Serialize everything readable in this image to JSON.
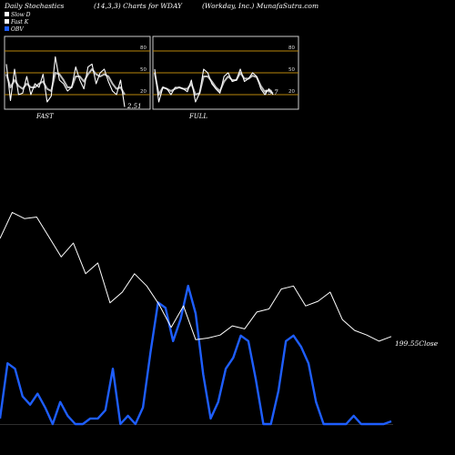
{
  "header": {
    "left": "Daily Stochastics",
    "center": "(14,3,3) Charts for WDAY",
    "right": "(Workday, Inc.) MunafaSutra.com"
  },
  "legend": [
    {
      "label": "Slow D",
      "color": "#ffffff"
    },
    {
      "label": "Fast K",
      "color": "#ffffff"
    },
    {
      "label": "OBV",
      "color": "#1e5eff"
    }
  ],
  "colors": {
    "background": "#000000",
    "price": "#ffffff",
    "obv": "#1e5eff",
    "level_lines": "#b8860b",
    "panel_border": "#cccccc"
  },
  "chart_data": [
    {
      "type": "line",
      "panel": "FAST",
      "label": "FAST",
      "last_value_label": "2.51",
      "levels": [
        80,
        50,
        20
      ],
      "ylim": [
        0,
        100
      ],
      "series": [
        {
          "name": "Fast K",
          "values": [
            62,
            12,
            55,
            20,
            22,
            45,
            20,
            35,
            30,
            48,
            10,
            18,
            72,
            40,
            35,
            25,
            30,
            58,
            40,
            28,
            58,
            62,
            35,
            50,
            55,
            38,
            25,
            20,
            40,
            3
          ]
        },
        {
          "name": "Slow D",
          "values": [
            48,
            30,
            40,
            32,
            28,
            35,
            30,
            30,
            35,
            38,
            28,
            25,
            50,
            48,
            40,
            30,
            30,
            45,
            45,
            38,
            48,
            55,
            48,
            45,
            48,
            45,
            35,
            28,
            30,
            20
          ]
        }
      ]
    },
    {
      "type": "line",
      "panel": "FULL",
      "label": "FULL",
      "last_value_label": "19.7",
      "levels": [
        80,
        50,
        20
      ],
      "ylim": [
        0,
        100
      ],
      "series": [
        {
          "name": "Fast K",
          "values": [
            55,
            10,
            30,
            28,
            20,
            30,
            30,
            28,
            24,
            40,
            10,
            22,
            55,
            50,
            35,
            28,
            22,
            45,
            50,
            38,
            40,
            55,
            38,
            42,
            50,
            45,
            28,
            20,
            28,
            20
          ]
        },
        {
          "name": "Slow D",
          "values": [
            50,
            20,
            30,
            28,
            25,
            28,
            30,
            28,
            28,
            35,
            20,
            22,
            45,
            45,
            38,
            30,
            25,
            38,
            45,
            40,
            40,
            50,
            42,
            42,
            46,
            44,
            32,
            24,
            26,
            22
          ]
        }
      ]
    },
    {
      "type": "line",
      "panel": "price",
      "close_label": "199.55",
      "close_word": "Close",
      "series": [
        {
          "name": "Close",
          "values": [
            263,
            280,
            276,
            277,
            264,
            251,
            260,
            240,
            247,
            221,
            228,
            240,
            232,
            220,
            205,
            219,
            197,
            198,
            200,
            206,
            204,
            215,
            217,
            230,
            232,
            219,
            222,
            228,
            210,
            203,
            200,
            196,
            199
          ]
        },
        {
          "name": "OBV",
          "values": [
            10,
            110,
            100,
            50,
            35,
            55,
            30,
            0,
            40,
            15,
            0,
            0,
            10,
            10,
            25,
            100,
            0,
            15,
            0,
            30,
            130,
            220,
            210,
            150,
            190,
            250,
            200,
            90,
            10,
            40,
            100,
            120,
            160,
            150,
            80,
            0,
            0,
            60,
            150,
            160,
            140,
            110,
            40,
            0,
            0,
            0,
            0,
            15,
            0,
            0,
            0,
            0,
            5
          ]
        }
      ]
    }
  ]
}
